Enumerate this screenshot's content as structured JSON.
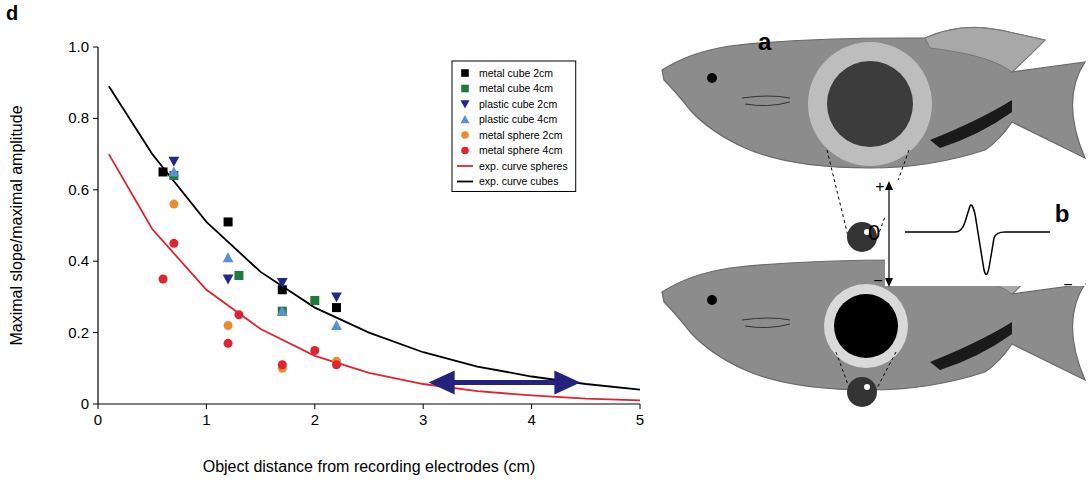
{
  "chart_data": {
    "type": "scatter",
    "panel_label": "d",
    "x_label": "Object distance from recording electrodes (cm)",
    "y_label": "Maximal slope/maximal amplitude",
    "xlim": [
      0,
      5
    ],
    "ylim": [
      0,
      1
    ],
    "xticks": [
      0,
      1,
      2,
      3,
      4,
      5
    ],
    "yticks": [
      0,
      0.2,
      0.4,
      0.6,
      0.8,
      {
        "value": 1,
        "label": "1.0"
      }
    ],
    "grid": false,
    "legend": "upper right",
    "series": [
      {
        "name": "metal cube 2cm",
        "type": "scatter",
        "marker": "square",
        "color": "#000000",
        "x": [
          0.6,
          1.2,
          1.7,
          2.2
        ],
        "values": [
          0.65,
          0.51,
          0.32,
          0.27
        ]
      },
      {
        "name": "metal cube 4cm",
        "type": "scatter",
        "marker": "square",
        "color": "#1e7b3c",
        "x": [
          0.7,
          1.3,
          1.7,
          2.0
        ],
        "values": [
          0.64,
          0.36,
          0.26,
          0.29
        ]
      },
      {
        "name": "plastic cube 2cm",
        "type": "scatter",
        "marker": "triangle-down",
        "color": "#1f2a8c",
        "x": [
          0.7,
          1.2,
          1.7,
          2.2
        ],
        "values": [
          0.68,
          0.35,
          0.34,
          0.3
        ]
      },
      {
        "name": "plastic cube 4cm",
        "type": "scatter",
        "marker": "triangle-up",
        "color": "#5b8fd6",
        "x": [
          0.7,
          1.2,
          1.7,
          2.2
        ],
        "values": [
          0.65,
          0.41,
          0.26,
          0.22
        ]
      },
      {
        "name": "metal sphere 2cm",
        "type": "scatter",
        "marker": "circle",
        "color": "#f08a30",
        "x": [
          0.7,
          1.2,
          1.7,
          2.2
        ],
        "values": [
          0.56,
          0.22,
          0.1,
          0.12
        ]
      },
      {
        "name": "metal sphere 4cm",
        "type": "scatter",
        "marker": "circle",
        "color": "#e0242f",
        "x": [
          0.6,
          0.7,
          1.2,
          1.3,
          1.7,
          2.0,
          2.2
        ],
        "values": [
          0.35,
          0.45,
          0.17,
          0.25,
          0.11,
          0.15,
          0.11
        ]
      },
      {
        "name": "exp. curve spheres",
        "type": "line",
        "line_style": "solid",
        "color": "#e0242f",
        "x": [
          0.1,
          0.5,
          1,
          1.5,
          2,
          2.5,
          3,
          3.5,
          4,
          4.5,
          5
        ],
        "values": [
          0.7,
          0.49,
          0.32,
          0.21,
          0.135,
          0.087,
          0.056,
          0.036,
          0.024,
          0.015,
          0.01
        ]
      },
      {
        "name": "exp. curve cubes",
        "type": "line",
        "line_style": "solid",
        "color": "#000000",
        "x": [
          0.1,
          0.5,
          1,
          1.5,
          2,
          2.5,
          3,
          3.5,
          4,
          4.5,
          5
        ],
        "values": [
          0.89,
          0.7,
          0.51,
          0.37,
          0.27,
          0.2,
          0.145,
          0.105,
          0.077,
          0.056,
          0.04
        ]
      }
    ],
    "arrow": {
      "x": [
        3.05,
        4.45
      ],
      "y": 0.06,
      "color": "#23237e"
    }
  },
  "diagram": {
    "panels": {
      "a": "a",
      "b": "b"
    },
    "trace_labels": {
      "plus": "+",
      "zero": "0",
      "minus": "−",
      "right": "−"
    }
  }
}
